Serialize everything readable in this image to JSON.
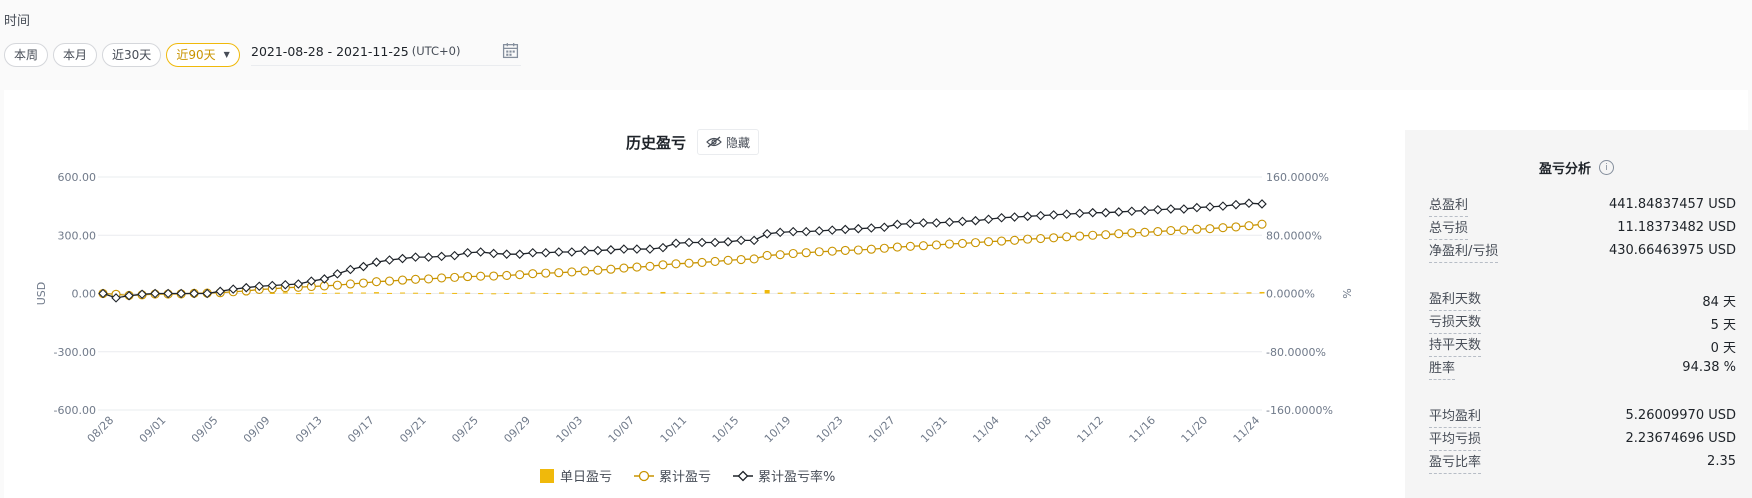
{
  "filters": {
    "label": "时间",
    "buttons": [
      "本周",
      "本月",
      "近30天"
    ],
    "active": "近90天",
    "date_range": "2021-08-28 - 2021-11-25",
    "timezone": "(UTC+0)"
  },
  "chart_header": {
    "title": "历史盈亏",
    "hide_label": "隐藏"
  },
  "legend": {
    "daily": "单日盈亏",
    "cumulative": "累计盈亏",
    "rate": "累计盈亏率%"
  },
  "colors": {
    "accent": "#f0b90b",
    "cumulative_line": "#c99400",
    "rate_line": "#1e2329"
  },
  "chart_data": {
    "type": "line",
    "x_start": "2021-08-28",
    "x_end": "2021-11-25",
    "x_tick_labels": [
      "08/28",
      "09/01",
      "09/05",
      "09/09",
      "09/13",
      "09/17",
      "09/21",
      "09/25",
      "09/29",
      "10/03",
      "10/07",
      "10/11",
      "10/15",
      "10/19",
      "10/23",
      "10/27",
      "10/31",
      "11/04",
      "11/08",
      "11/12",
      "11/16",
      "11/20",
      "11/24"
    ],
    "ylabel_left": "USD",
    "ylabel_right": "%",
    "ylim_left": [
      -600,
      600
    ],
    "ylim_right": [
      -160,
      160
    ],
    "yticks_left": [
      "600.00",
      "300.00",
      "0.00",
      "-300.00",
      "-600.00"
    ],
    "yticks_right": [
      "160.0000%",
      "80.0000%",
      "0.0000%",
      "-80.0000%",
      "-160.0000%"
    ],
    "grid": true,
    "legend_position": "bottom",
    "series": [
      {
        "name": "单日盈亏",
        "type": "bar",
        "values": [
          5,
          -4,
          -8,
          3,
          4,
          0,
          1,
          3,
          1,
          2,
          5,
          4,
          8,
          3,
          6,
          2,
          4,
          3,
          4,
          6,
          5,
          7,
          3,
          5,
          4,
          2,
          5,
          3,
          4,
          2,
          1,
          3,
          4,
          5,
          3,
          2,
          4,
          5,
          4,
          5,
          6,
          5,
          4,
          8,
          5,
          3,
          4,
          5,
          6,
          4,
          3,
          18,
          4,
          6,
          4,
          5,
          3,
          4,
          2,
          4,
          5,
          6,
          4,
          3,
          4,
          5,
          3,
          4,
          5,
          3,
          4,
          6,
          3,
          4,
          5,
          4,
          4,
          3,
          5,
          4,
          3,
          4,
          5,
          3,
          4,
          3,
          5,
          4,
          6,
          8
        ]
      },
      {
        "name": "累计盈亏",
        "type": "line",
        "values": [
          0,
          -4,
          -10,
          -7,
          -3,
          -3,
          -2,
          1,
          2,
          4,
          9,
          13,
          21,
          24,
          30,
          32,
          36,
          39,
          43,
          49,
          54,
          61,
          64,
          69,
          73,
          75,
          80,
          83,
          87,
          89,
          90,
          93,
          97,
          102,
          105,
          107,
          111,
          116,
          120,
          125,
          131,
          136,
          140,
          148,
          153,
          156,
          160,
          165,
          171,
          175,
          178,
          196,
          200,
          206,
          210,
          215,
          218,
          222,
          224,
          228,
          233,
          239,
          243,
          246,
          250,
          255,
          258,
          262,
          267,
          270,
          274,
          280,
          283,
          287,
          292,
          296,
          300,
          303,
          308,
          312,
          315,
          319,
          324,
          327,
          331,
          334,
          339,
          343,
          349,
          357
        ]
      },
      {
        "name": "累计盈亏率%",
        "type": "line",
        "values": [
          0,
          -6,
          -3,
          -1,
          0,
          0,
          0,
          0,
          0,
          3,
          6,
          8,
          10,
          11,
          12,
          13,
          17,
          20,
          27,
          33,
          37,
          43,
          46,
          48,
          50,
          50,
          51,
          52,
          56,
          57,
          55,
          54,
          54,
          56,
          56,
          57,
          57,
          59,
          59,
          60,
          61,
          61,
          61,
          63,
          69,
          70,
          70,
          70,
          71,
          73,
          73,
          82,
          84,
          85,
          85,
          86,
          87,
          88,
          89,
          90,
          91,
          95,
          96,
          97,
          97,
          98,
          99,
          100,
          102,
          104,
          105,
          106,
          107,
          108,
          109,
          110,
          111,
          111,
          112,
          113,
          114,
          115,
          116,
          116,
          118,
          119,
          120,
          122,
          124,
          123
        ]
      }
    ]
  },
  "analysis": {
    "title": "盈亏分析",
    "rows": [
      {
        "label": "总盈利",
        "value": "441.84837457 USD"
      },
      {
        "label": "总亏损",
        "value": "11.18373482 USD"
      },
      {
        "label": "净盈利/亏损",
        "value": "430.66463975 USD"
      },
      {
        "label": "盈利天数",
        "value": "84 天"
      },
      {
        "label": "亏损天数",
        "value": "5 天"
      },
      {
        "label": "持平天数",
        "value": "0 天"
      },
      {
        "label": "胜率",
        "value": "94.38 %"
      },
      {
        "label": "平均盈利",
        "value": "5.26009970 USD"
      },
      {
        "label": "平均亏损",
        "value": "2.23674696 USD"
      },
      {
        "label": "盈亏比率",
        "value": "2.35"
      }
    ]
  }
}
